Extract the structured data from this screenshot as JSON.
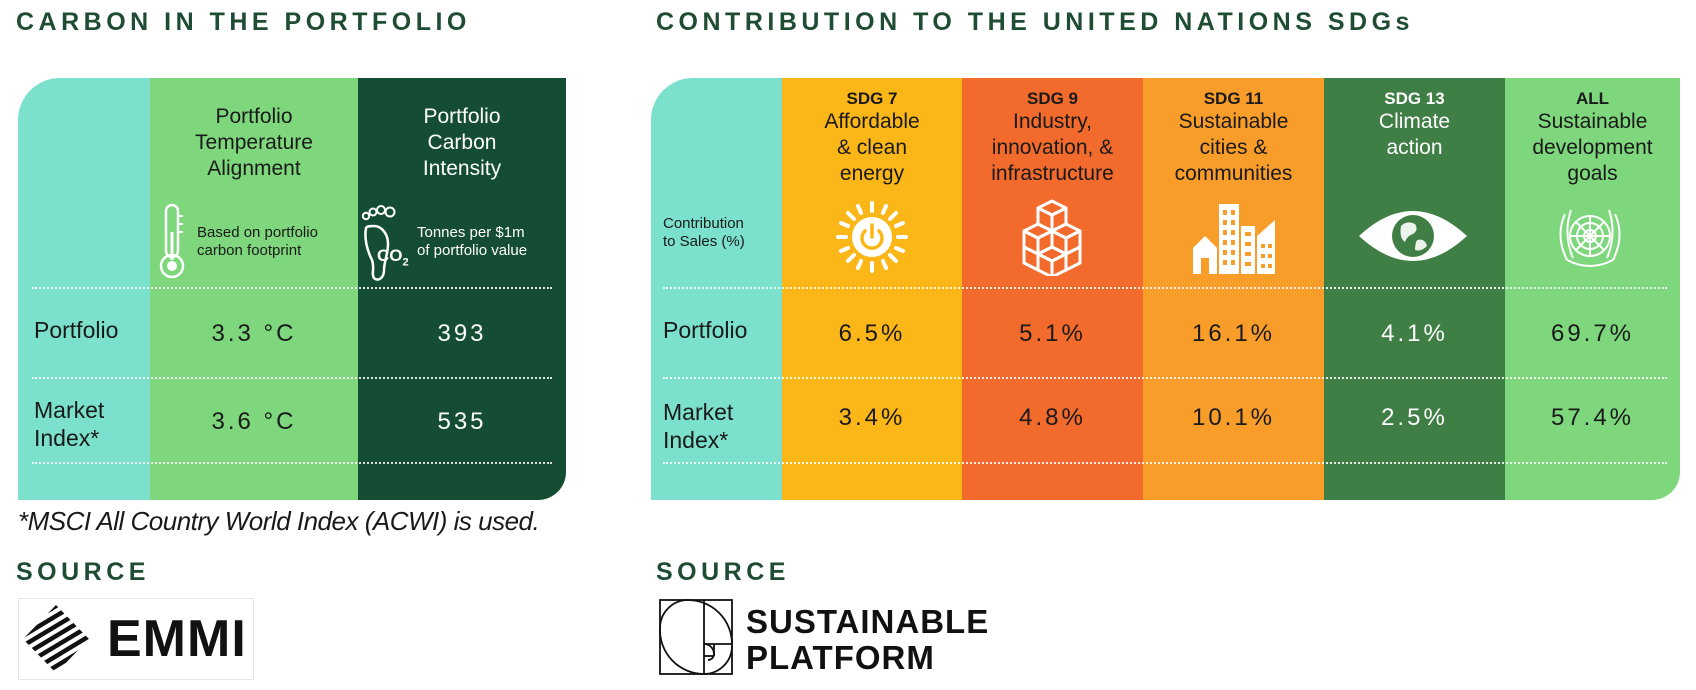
{
  "left": {
    "heading": "CARBON IN THE PORTFOLIO",
    "col1_header": [
      "Portfolio",
      "Temperature",
      "Alignment"
    ],
    "col1_note": [
      "Based on portfolio",
      "carbon footprint"
    ],
    "col2_header": [
      "Portfolio",
      "Carbon",
      "Intensity"
    ],
    "col2_note": [
      "Tonnes per $1m",
      "of portfolio value"
    ],
    "co2_label": "CO",
    "co2_sub": "2",
    "rows": [
      {
        "label": [
          "Portfolio"
        ],
        "values": [
          "3.3 °C",
          "393"
        ]
      },
      {
        "label": [
          "Market",
          "Index*"
        ],
        "values": [
          "3.6 °C",
          "535"
        ]
      }
    ],
    "footnote": "*MSCI All Country World Index (ACWI) is used.",
    "source_label": "SOURCE",
    "logo_text": "EMMI"
  },
  "right": {
    "heading": "CONTRIBUTION TO THE UNITED NATIONS SDGs",
    "row_header": [
      "Contribution",
      "to Sales (%)"
    ],
    "columns": [
      {
        "code": "SDG 7",
        "title": [
          "Affordable",
          "& clean",
          "energy"
        ],
        "icon": "sun-power-icon",
        "color": "#fbb617"
      },
      {
        "code": "SDG 9",
        "title": [
          "Industry,",
          "innovation, &",
          "infrastructure"
        ],
        "icon": "cubes-icon",
        "color": "#f26a2c"
      },
      {
        "code": "SDG 11",
        "title": [
          "Sustainable",
          "cities &",
          "communities"
        ],
        "icon": "city-buildings-icon",
        "color": "#f99d2a"
      },
      {
        "code": "SDG 13",
        "title": [
          "Climate",
          "action"
        ],
        "icon": "earth-eye-icon",
        "color": "#3f7e44"
      },
      {
        "code": "ALL",
        "title": [
          "Sustainable",
          "development",
          "goals"
        ],
        "icon": "un-emblem-icon",
        "color": "#7ed77c"
      }
    ],
    "rows": [
      {
        "label": [
          "Portfolio"
        ],
        "values": [
          "6.5%",
          "5.1%",
          "16.1%",
          "4.1%",
          "69.7%"
        ]
      },
      {
        "label": [
          "Market",
          "Index*"
        ],
        "values": [
          "3.4%",
          "4.8%",
          "10.1%",
          "2.5%",
          "57.4%"
        ]
      }
    ],
    "source_label": "SOURCE",
    "logo_text": [
      "SUSTAINABLE",
      "PLATFORM"
    ]
  },
  "colors": {
    "heading": "#1f4d33",
    "teal": "#7be0cc",
    "light_green": "#7ed77c",
    "dark_green": "#144d33"
  }
}
